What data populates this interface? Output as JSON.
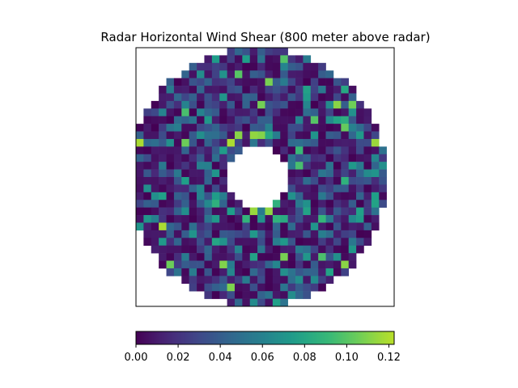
{
  "chart_data": {
    "type": "heatmap",
    "title": "Radar Horizontal Wind Shear (800 meter above radar)",
    "xlabel": "",
    "ylabel": "",
    "grid": false,
    "axes_ticks_visible": false,
    "colormap": "viridis",
    "color_range": [
      0,
      0.1225
    ],
    "colorbar": {
      "orientation": "horizontal",
      "position": "bottom",
      "ticks": [
        0.0,
        0.02,
        0.04,
        0.06,
        0.08,
        0.1,
        0.12
      ],
      "tick_labels": [
        "0.00",
        "0.02",
        "0.04",
        "0.06",
        "0.08",
        "0.10",
        "0.12"
      ]
    },
    "grid_size": 34,
    "data_mask": "annulus",
    "annulus_inner_radius_cells": 4.2,
    "annulus_outer_radius_cells": 17,
    "annulus_center_cells": [
      16,
      17
    ],
    "value_distribution": {
      "min": 0.0,
      "max": 0.12,
      "typical": 0.02,
      "notes": "Mostly low values (0.00–0.04), scattered moderate cells (0.05–0.08), a few high cells (0.10–0.12) near the inner edge of the annulus."
    }
  }
}
